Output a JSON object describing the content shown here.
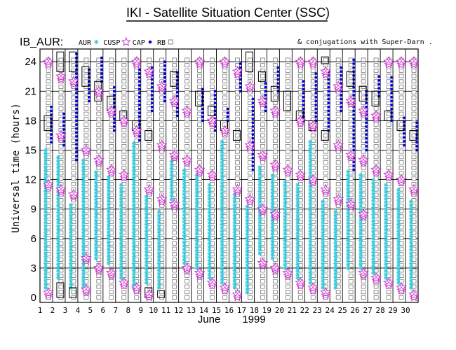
{
  "title": "IKI - Satellite Situation Center (SSC)",
  "header": {
    "dataset_label": "IB_AUR:",
    "legend_items": [
      {
        "label": "AUR",
        "symbol": "asterisk",
        "color": "#33ccdd"
      },
      {
        "label": "CUSP",
        "symbol": "star",
        "color": "#cc33cc"
      },
      {
        "label": "CAP",
        "symbol": "dot",
        "color": "#0000dd"
      },
      {
        "label": "RB",
        "symbol": "square",
        "color": "#777777"
      }
    ],
    "conjugations_note": "& conjugations with Super-Darn ."
  },
  "chart_data": {
    "type": "scatter",
    "title": "IKI - Satellite Situation Center (SSC)",
    "ylabel": "Universal time (hours)",
    "xlabel_month": "June",
    "xlabel_year": "1999",
    "ylim": [
      -0.5,
      25.3
    ],
    "xlim": [
      1,
      31
    ],
    "y_ticks": [
      0,
      3,
      6,
      9,
      12,
      15,
      18,
      21,
      24
    ],
    "x_ticks": [
      1,
      2,
      3,
      4,
      5,
      6,
      7,
      8,
      9,
      10,
      11,
      12,
      13,
      14,
      15,
      16,
      17,
      18,
      19,
      20,
      21,
      22,
      23,
      24,
      25,
      26,
      27,
      28,
      29,
      30
    ],
    "grid": true,
    "colors": {
      "AUR": "#33ccdd",
      "CUSP": "#cc33cc",
      "CAP": "#0000dd",
      "RB": "#777777",
      "conjugation": "#000000"
    },
    "series": [
      {
        "name": "CUSP",
        "points": [
          [
            2,
            24
          ],
          [
            2,
            11.5
          ],
          [
            2,
            0.5
          ],
          [
            3,
            22.5
          ],
          [
            3,
            16.5
          ],
          [
            3,
            11
          ],
          [
            4,
            22
          ],
          [
            4,
            10.5
          ],
          [
            5,
            15
          ],
          [
            5,
            4
          ],
          [
            5,
            0.8
          ],
          [
            6,
            21
          ],
          [
            6,
            14
          ],
          [
            6,
            3
          ],
          [
            7,
            19
          ],
          [
            7,
            13
          ],
          [
            7,
            2.5
          ],
          [
            8,
            18
          ],
          [
            8,
            12.5
          ],
          [
            8,
            1.5
          ],
          [
            9,
            24
          ],
          [
            9,
            17
          ],
          [
            9,
            1
          ],
          [
            10,
            23
          ],
          [
            10,
            11
          ],
          [
            10,
            0.3
          ],
          [
            11,
            21.5
          ],
          [
            11,
            15.5
          ],
          [
            11,
            10
          ],
          [
            12,
            20
          ],
          [
            12,
            14.5
          ],
          [
            12,
            9.5
          ],
          [
            13,
            19
          ],
          [
            13,
            14
          ],
          [
            13,
            3
          ],
          [
            14,
            24
          ],
          [
            14,
            13
          ],
          [
            14,
            2.5
          ],
          [
            15,
            18
          ],
          [
            15,
            12.5
          ],
          [
            15,
            1.5
          ],
          [
            16,
            24
          ],
          [
            16,
            17
          ],
          [
            16,
            1
          ],
          [
            17,
            23
          ],
          [
            17,
            11
          ],
          [
            17,
            0.3
          ],
          [
            18,
            21.5
          ],
          [
            18,
            15.5
          ],
          [
            18,
            10
          ],
          [
            19,
            20
          ],
          [
            19,
            14.5
          ],
          [
            19,
            9
          ],
          [
            19,
            3.5
          ],
          [
            20,
            19
          ],
          [
            20,
            13.5
          ],
          [
            20,
            8.5
          ],
          [
            20,
            3
          ],
          [
            21,
            13
          ],
          [
            21,
            2.5
          ],
          [
            22,
            24
          ],
          [
            22,
            18
          ],
          [
            22,
            12.5
          ],
          [
            22,
            1.5
          ],
          [
            23,
            24
          ],
          [
            23,
            17.5
          ],
          [
            23,
            12
          ],
          [
            23,
            1
          ],
          [
            24,
            23
          ],
          [
            24,
            11
          ],
          [
            24,
            0.5
          ],
          [
            25,
            21.5
          ],
          [
            25,
            15.5
          ],
          [
            25,
            10
          ],
          [
            26,
            20
          ],
          [
            26,
            14.5
          ],
          [
            26,
            9.5
          ],
          [
            27,
            19
          ],
          [
            27,
            14
          ],
          [
            27,
            8.5
          ],
          [
            27,
            2.5
          ],
          [
            28,
            18.5
          ],
          [
            28,
            13
          ],
          [
            28,
            2
          ],
          [
            29,
            24
          ],
          [
            29,
            12.5
          ],
          [
            29,
            1.5
          ],
          [
            30,
            24
          ],
          [
            30,
            12
          ],
          [
            30,
            1
          ],
          [
            31,
            24
          ],
          [
            31,
            11
          ],
          [
            31,
            0.3
          ]
        ]
      },
      {
        "name": "CAP",
        "ranges": [
          [
            2,
            15.8,
            19.5
          ],
          [
            3,
            15.5,
            19
          ],
          [
            4,
            14,
            24.8
          ],
          [
            5,
            20,
            23.5
          ],
          [
            6,
            22,
            24.5
          ],
          [
            7,
            17,
            21.5
          ],
          [
            9,
            16,
            23.5
          ],
          [
            10,
            19,
            23.5
          ],
          [
            11,
            20,
            24
          ],
          [
            12,
            18.5,
            23
          ],
          [
            14,
            18,
            21.5
          ],
          [
            15,
            17,
            21
          ],
          [
            16,
            18,
            19.5
          ],
          [
            17,
            21,
            24
          ],
          [
            18,
            13,
            20.5
          ],
          [
            19,
            19,
            22
          ],
          [
            20,
            21,
            23.5
          ],
          [
            22,
            18,
            22
          ],
          [
            23,
            18,
            23
          ],
          [
            24,
            17,
            23
          ],
          [
            25,
            19,
            23.5
          ],
          [
            26,
            13,
            24.5
          ],
          [
            27,
            15,
            21
          ],
          [
            28,
            20.5,
            22.5
          ],
          [
            29,
            18,
            22.5
          ],
          [
            30,
            15.5,
            18.5
          ],
          [
            31,
            15,
            18
          ]
        ]
      },
      {
        "name": "RB",
        "ranges": [
          [
            2,
            0,
            24.5
          ],
          [
            3,
            0,
            24.5
          ],
          [
            4,
            0,
            24.5
          ],
          [
            5,
            0,
            24.5
          ],
          [
            6,
            0,
            24.5
          ],
          [
            7,
            0,
            24.5
          ],
          [
            8,
            0,
            24.5
          ],
          [
            9,
            0,
            24.5
          ],
          [
            10,
            0,
            24.5
          ],
          [
            11,
            0,
            24.5
          ],
          [
            12,
            0,
            24.5
          ],
          [
            13,
            0,
            24.5
          ],
          [
            14,
            0,
            24.5
          ],
          [
            15,
            0,
            24.5
          ],
          [
            16,
            0,
            24.5
          ],
          [
            17,
            0,
            24.5
          ],
          [
            18,
            0,
            24.5
          ],
          [
            19,
            0,
            24.5
          ],
          [
            20,
            0,
            24.5
          ],
          [
            21,
            0,
            24.5
          ],
          [
            22,
            0,
            24.5
          ],
          [
            23,
            0,
            24.5
          ],
          [
            24,
            0,
            24.5
          ],
          [
            25,
            0,
            24.5
          ],
          [
            26,
            0,
            24.5
          ],
          [
            27,
            0,
            24.5
          ],
          [
            28,
            0,
            24.5
          ],
          [
            29,
            0,
            24.5
          ],
          [
            30,
            0,
            24.5
          ],
          [
            31,
            0,
            24.5
          ]
        ]
      },
      {
        "name": "AUR",
        "ranges": [
          [
            2,
            1,
            15
          ],
          [
            3,
            2,
            14.5
          ],
          [
            4,
            1,
            9.5
          ],
          [
            5,
            1,
            14
          ],
          [
            6,
            4,
            13
          ],
          [
            7,
            3.5,
            12.5
          ],
          [
            8,
            2,
            11.5
          ],
          [
            9,
            1,
            16
          ],
          [
            10,
            1.5,
            10.5
          ],
          [
            11,
            1,
            9
          ],
          [
            12,
            10,
            14
          ],
          [
            13,
            3.5,
            13
          ],
          [
            14,
            3,
            12.5
          ],
          [
            15,
            2,
            11.5
          ],
          [
            16,
            1.5,
            16
          ],
          [
            17,
            1,
            10.5
          ],
          [
            18,
            0.5,
            9.5
          ],
          [
            19,
            4.5,
            13.5
          ],
          [
            20,
            4,
            12.5
          ],
          [
            21,
            3,
            12
          ],
          [
            22,
            2,
            11.5
          ],
          [
            23,
            1.5,
            16
          ],
          [
            24,
            1,
            10
          ],
          [
            25,
            1,
            9
          ],
          [
            26,
            3,
            13
          ],
          [
            27,
            3,
            12.5
          ],
          [
            28,
            2.5,
            12
          ],
          [
            29,
            2,
            11.5
          ],
          [
            30,
            1.5,
            11
          ],
          [
            31,
            1,
            10
          ]
        ]
      },
      {
        "name": "conjugations",
        "boxes": [
          [
            2,
            17,
            18.5
          ],
          [
            3,
            0,
            1.5
          ],
          [
            3,
            23,
            25
          ],
          [
            4,
            0,
            1
          ],
          [
            4,
            23,
            25
          ],
          [
            5,
            21.5,
            23.5
          ],
          [
            6,
            20,
            22
          ],
          [
            7,
            19,
            20.5
          ],
          [
            8,
            18,
            19
          ],
          [
            9,
            17,
            18
          ],
          [
            10,
            16,
            17
          ],
          [
            10,
            0,
            1
          ],
          [
            11,
            0,
            0.7
          ],
          [
            12,
            21.5,
            23
          ],
          [
            14,
            19.5,
            21
          ],
          [
            15,
            18.5,
            19.5
          ],
          [
            16,
            17,
            18
          ],
          [
            17,
            16,
            17
          ],
          [
            18,
            23,
            25
          ],
          [
            19,
            22,
            23
          ],
          [
            20,
            20,
            21.5
          ],
          [
            21,
            19,
            21
          ],
          [
            22,
            18,
            19
          ],
          [
            23,
            17,
            18
          ],
          [
            24,
            16,
            17
          ],
          [
            24,
            23.8,
            24.5
          ],
          [
            26,
            21.5,
            23
          ],
          [
            27,
            20,
            21.5
          ],
          [
            28,
            19.5,
            21
          ],
          [
            29,
            18,
            19
          ],
          [
            30,
            17,
            18
          ],
          [
            31,
            16,
            17
          ]
        ]
      }
    ]
  }
}
